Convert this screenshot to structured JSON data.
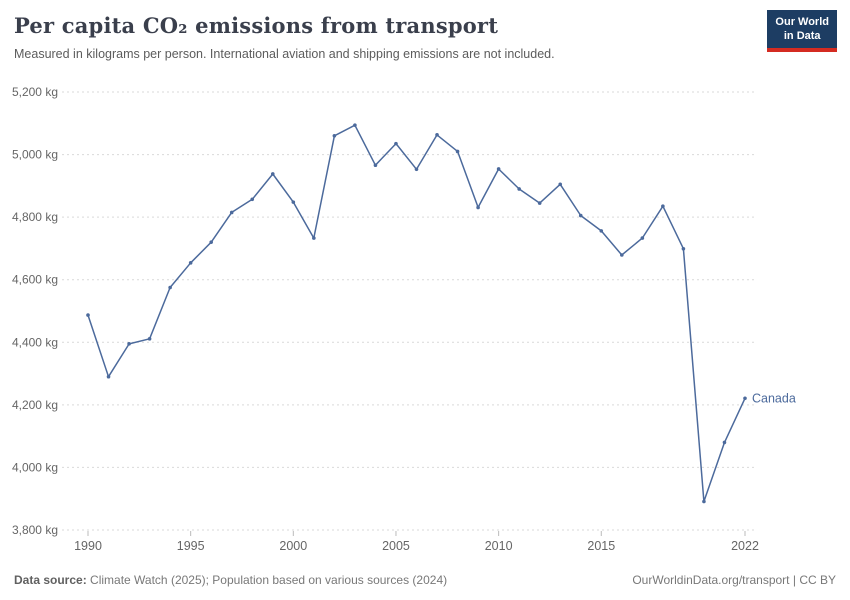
{
  "header": {
    "title": "Per capita CO₂ emissions from transport",
    "subtitle": "Measured in kilograms per person. International aviation and shipping emissions are not included.",
    "logo": {
      "line1": "Our World",
      "line2": "in Data"
    }
  },
  "chart_data": {
    "type": "line",
    "title": "Per capita CO₂ emissions from transport",
    "ylabel": "kilograms per person",
    "xlim": [
      1990,
      2022
    ],
    "ylim": [
      3800,
      5200
    ],
    "grid": "horizontal-dashed",
    "legend_position": "end-of-line-label",
    "y_ticks": [
      3800,
      4000,
      4200,
      4400,
      4600,
      4800,
      5000,
      5200
    ],
    "y_tick_suffix": " kg",
    "x_ticks": [
      1990,
      1995,
      2000,
      2005,
      2010,
      2015,
      2022
    ],
    "series": [
      {
        "name": "Canada",
        "color": "#4c6a9c",
        "x": [
          1990,
          1991,
          1992,
          1993,
          1994,
          1995,
          1996,
          1997,
          1998,
          1999,
          2000,
          2001,
          2002,
          2003,
          2004,
          2005,
          2006,
          2007,
          2008,
          2009,
          2010,
          2011,
          2012,
          2013,
          2014,
          2015,
          2016,
          2017,
          2018,
          2019,
          2020,
          2021,
          2022
        ],
        "values": [
          4487,
          4290,
          4395,
          4411,
          4575,
          4654,
          4720,
          4815,
          4857,
          4938,
          4848,
          4733,
          5060,
          5094,
          4966,
          5035,
          4953,
          5063,
          5010,
          4831,
          4954,
          4890,
          4845,
          4905,
          4805,
          4756,
          4679,
          4733,
          4835,
          4699,
          3891,
          4080,
          4221
        ]
      }
    ],
    "colors": {
      "grid": "#d9d9d9",
      "tick_text": "#666666",
      "axis_tick": "#bbbbbb"
    }
  },
  "footer": {
    "source_label": "Data source:",
    "source_text": " Climate Watch (2025); Population based on various sources (2024)",
    "right_link": "OurWorldinData.org/transport",
    "right_divider": " | ",
    "right_license": "CC BY"
  }
}
